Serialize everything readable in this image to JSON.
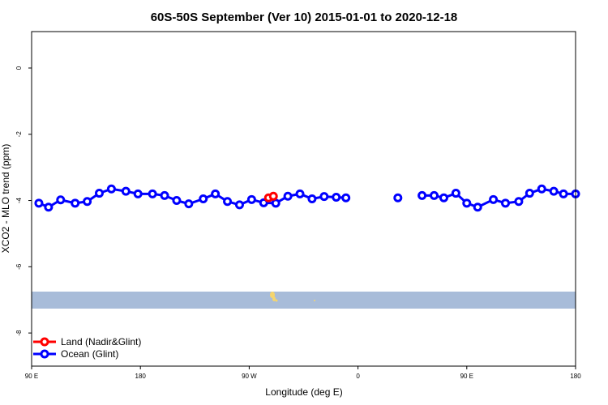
{
  "chart_data": {
    "type": "line",
    "title": "60S-50S September (Ver 10)   2015-01-01 to 2020-12-18",
    "xlabel": "Longitude (deg E)",
    "ylabel": "XCO2 - MLO trend (ppm)",
    "xlim": [
      90,
      540
    ],
    "ylim": [
      -9,
      1.1
    ],
    "x_ticks": [
      {
        "value": 90,
        "label": "90 E"
      },
      {
        "value": 180,
        "label": "180"
      },
      {
        "value": 270,
        "label": "90 W"
      },
      {
        "value": 360,
        "label": "0"
      },
      {
        "value": 450,
        "label": "90 E"
      },
      {
        "value": 540,
        "label": "180"
      }
    ],
    "y_ticks": [
      {
        "value": 0,
        "label": "0"
      },
      {
        "value": -2,
        "label": "-2"
      },
      {
        "value": -4,
        "label": "-4"
      },
      {
        "value": -6,
        "label": "-6"
      },
      {
        "value": -8,
        "label": "-8"
      }
    ],
    "grid": false,
    "legend_position": "bottom-left",
    "series": [
      {
        "name": "Land (Nadir&Glint)",
        "color": "#ff0000",
        "x": [
          286,
          290
        ],
        "y": [
          -3.92,
          -3.87
        ]
      },
      {
        "name": "Ocean (Glint)",
        "color": "#0000ff",
        "segments": [
          {
            "x": [
              96,
              104,
              114,
              126,
              136,
              146,
              156,
              168,
              178,
              190,
              200,
              210,
              220,
              232,
              242,
              252,
              262,
              272,
              282,
              292,
              302,
              312,
              322,
              332,
              342,
              350
            ],
            "y": [
              -4.08,
              -4.2,
              -3.98,
              -4.08,
              -4.03,
              -3.78,
              -3.65,
              -3.72,
              -3.8,
              -3.8,
              -3.85,
              -4.0,
              -4.1,
              -3.95,
              -3.8,
              -4.03,
              -4.13,
              -3.97,
              -4.07,
              -4.08,
              -3.87,
              -3.8,
              -3.95,
              -3.88,
              -3.9,
              -3.92
            ]
          },
          {
            "x": [
              393
            ],
            "y": [
              -3.92
            ]
          },
          {
            "x": [
              413,
              423,
              431,
              441,
              450,
              459,
              472,
              482,
              493,
              502,
              512,
              522,
              530,
              540
            ],
            "y": [
              -3.85,
              -3.85,
              -3.92,
              -3.78,
              -4.08,
              -4.2,
              -3.97,
              -4.08,
              -4.03,
              -3.78,
              -3.65,
              -3.72,
              -3.8,
              -3.8
            ]
          }
        ]
      }
    ]
  }
}
